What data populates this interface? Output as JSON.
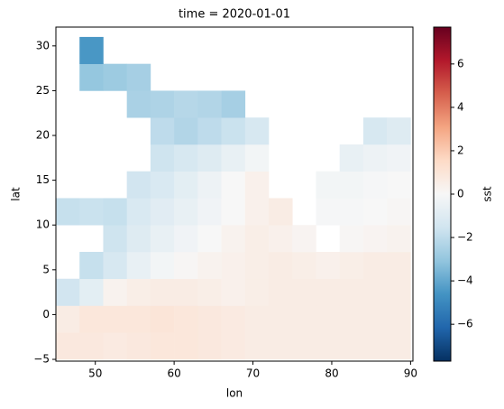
{
  "chart_data": {
    "type": "heatmap",
    "title": "time = 2020-01-01",
    "x_label": "lon",
    "y_label": "lat",
    "colorbar_label": "sst",
    "x": [
      46.5,
      49.5,
      52.5,
      55.5,
      58.5,
      61.5,
      64.5,
      67.5,
      70.5,
      73.5,
      76.5,
      79.5,
      82.5,
      85.5,
      88.5
    ],
    "y": [
      -3.5,
      -0.5,
      2.5,
      5.5,
      8.5,
      11.5,
      14.5,
      17.5,
      20.5,
      23.5,
      26.5,
      29.5
    ],
    "z": [
      [
        0.8,
        0.8,
        0.7,
        0.8,
        0.9,
        0.9,
        0.8,
        0.7,
        0.6,
        0.6,
        0.6,
        0.6,
        0.6,
        0.6,
        0.6
      ],
      [
        0.6,
        0.9,
        0.9,
        0.9,
        1.0,
        0.9,
        0.8,
        0.7,
        0.6,
        0.6,
        0.6,
        0.6,
        0.6,
        0.6,
        0.6
      ],
      [
        -1.5,
        -0.8,
        0.3,
        0.5,
        0.6,
        0.6,
        0.5,
        0.4,
        0.5,
        0.6,
        0.6,
        0.6,
        0.6,
        0.6,
        0.6
      ],
      [
        null,
        -1.8,
        -1.3,
        -0.6,
        -0.2,
        0.1,
        0.3,
        0.4,
        0.5,
        0.6,
        0.5,
        0.4,
        0.5,
        0.6,
        0.6
      ],
      [
        null,
        null,
        -1.6,
        -1.0,
        -0.6,
        -0.3,
        0.0,
        0.3,
        0.5,
        0.4,
        0.2,
        null,
        0.1,
        0.2,
        0.3
      ],
      [
        -1.8,
        -1.7,
        -1.8,
        -1.2,
        -0.9,
        -0.6,
        -0.3,
        0.0,
        0.4,
        0.6,
        null,
        -0.1,
        -0.1,
        0.0,
        0.1
      ],
      [
        null,
        null,
        null,
        -1.5,
        -1.2,
        -0.8,
        -0.4,
        0.0,
        0.4,
        null,
        null,
        -0.2,
        -0.2,
        -0.1,
        0.0
      ],
      [
        null,
        null,
        null,
        null,
        -1.6,
        -1.3,
        -1.0,
        -0.6,
        -0.2,
        null,
        null,
        null,
        -0.6,
        -0.4,
        -0.3
      ],
      [
        null,
        null,
        null,
        null,
        -2.0,
        -2.3,
        -2.0,
        -1.7,
        -1.3,
        null,
        null,
        null,
        null,
        -1.3,
        -1.0
      ],
      [
        null,
        null,
        null,
        -2.5,
        -2.4,
        -2.2,
        -2.3,
        -2.6,
        null,
        null,
        null,
        null,
        null,
        null,
        null
      ],
      [
        null,
        -3.0,
        -2.8,
        -2.6,
        null,
        null,
        null,
        null,
        null,
        null,
        null,
        null,
        null,
        null,
        null
      ],
      [
        null,
        -4.5,
        null,
        null,
        null,
        null,
        null,
        null,
        null,
        null,
        null,
        null,
        null,
        null,
        null
      ]
    ],
    "cell_width": 3,
    "cell_height": 3,
    "xlim": [
      45,
      90.3
    ],
    "ylim": [
      -5.2,
      32.1
    ],
    "xticks": [
      50,
      60,
      70,
      80,
      90
    ],
    "yticks": [
      {
        "value": -5,
        "label": "−5"
      },
      0,
      5,
      10,
      15,
      20,
      25,
      30
    ],
    "clim": [
      -7.7,
      7.7
    ],
    "cbar_ticks": [
      {
        "value": -6,
        "label": "−6"
      },
      {
        "value": -4,
        "label": "−4"
      },
      {
        "value": -2,
        "label": "−2"
      },
      0,
      2,
      4,
      6
    ],
    "colormap": [
      "#053061",
      "#2166ac",
      "#4393c3",
      "#92c5de",
      "#d1e5f0",
      "#f7f7f7",
      "#fddbc7",
      "#f4a582",
      "#d6604d",
      "#b2182b",
      "#67001f"
    ]
  }
}
